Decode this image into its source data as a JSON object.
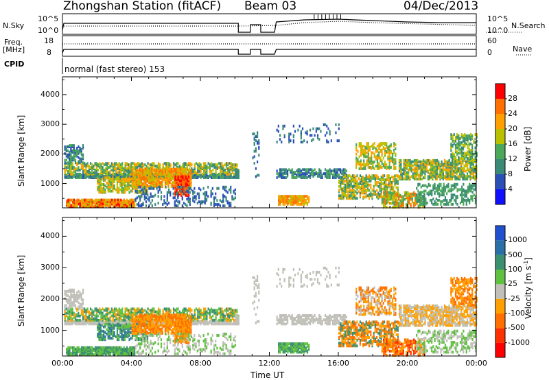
{
  "header": {
    "station": "Zhongshan Station (fitACF)",
    "beam": "Beam 03",
    "date": "04/Dec/2013"
  },
  "aux": {
    "nsky_label": "N.Sky",
    "nsky_ticks": [
      "10^5",
      "10^0"
    ],
    "nsearch_label": "N.Search",
    "nsearch_ticks": [
      "10^5",
      "10^0"
    ],
    "freq_label_1": "Freq.",
    "freq_label_2": "[MHz]",
    "freq_ticks": [
      "18",
      "8"
    ],
    "nave_label": "Nave",
    "nave_ticks": [
      "60",
      "0"
    ],
    "cpid_label": "CPID",
    "cpid_value": "normal (fast stereo) 153"
  },
  "chart_data": [
    {
      "type": "heatmap",
      "name": "power-panel",
      "ylabel": "Slant Range [km]",
      "yticks": [
        1000,
        2000,
        3000,
        4000
      ],
      "ylim": [
        180,
        4600
      ],
      "xlim_hours": [
        0,
        24
      ],
      "colorbar": {
        "label": "Power [dB]",
        "ticks": [
          "4",
          "8",
          "12",
          "16",
          "20",
          "24",
          "28"
        ],
        "colors": [
          "#1010ff",
          "#2a50b8",
          "#3a8a78",
          "#4aa858",
          "#b8c000",
          "#ffa000",
          "#ff7000",
          "#ff0000"
        ]
      }
    },
    {
      "type": "heatmap",
      "name": "velocity-panel",
      "ylabel": "Slant Range [km]",
      "yticks": [
        1000,
        2000,
        3000,
        4000
      ],
      "ylim": [
        180,
        4600
      ],
      "xlim_hours": [
        0,
        24
      ],
      "xticks": [
        "00:00",
        "04:00",
        "08:00",
        "12:00",
        "16:00",
        "20:00",
        "00:00"
      ],
      "xlabel": "Time UT",
      "colorbar": {
        "label": "Velocity [m s",
        "label_sup": "-1",
        "label_end": "]",
        "ticks": [
          "1000",
          "500",
          "100",
          "25",
          "-25",
          "-100",
          "-500",
          "-1000"
        ],
        "colors": [
          "#2050d0",
          "#2a70a8",
          "#3a9070",
          "#60c040",
          "#c0c0b8",
          "#ffa000",
          "#ff7000",
          "#ff3000",
          "#ff0000"
        ]
      }
    }
  ]
}
